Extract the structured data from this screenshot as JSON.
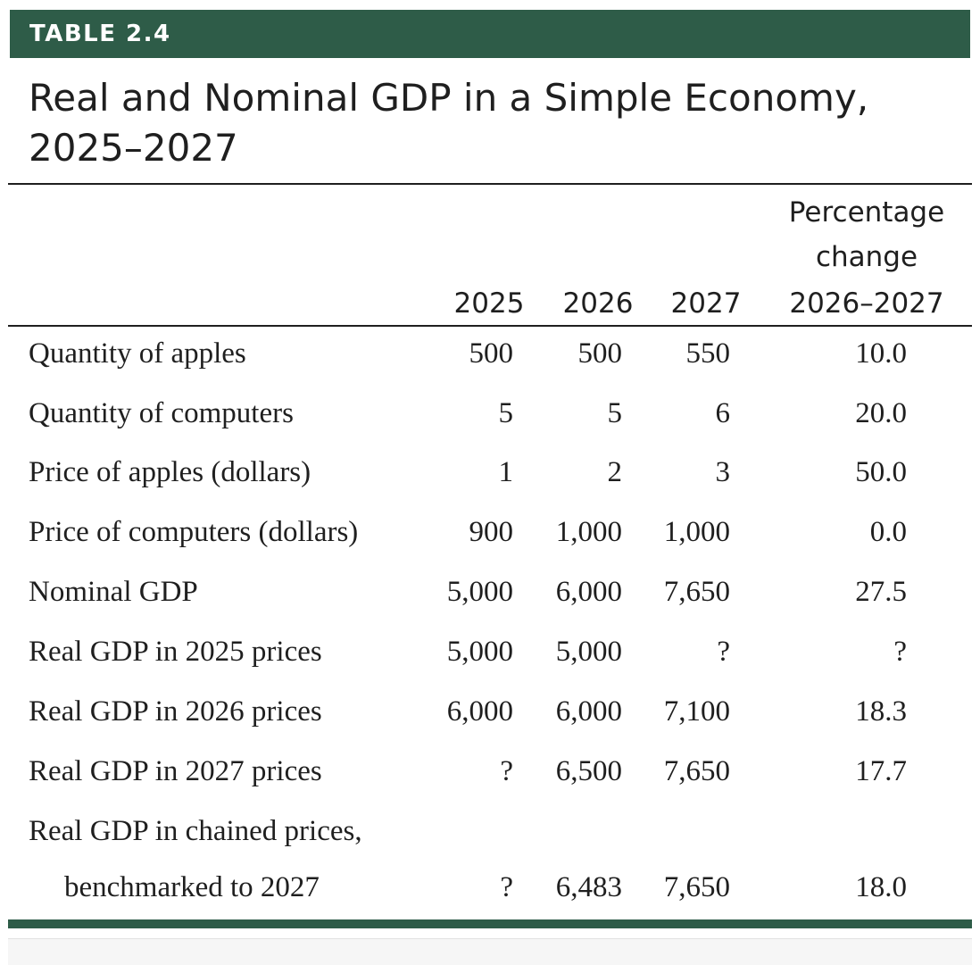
{
  "header": {
    "label": "TABLE 2.4",
    "title": "Real and Nominal GDP in a Simple Economy, 2025–2027"
  },
  "columns": {
    "y2025": "2025",
    "y2026": "2026",
    "y2027": "2027",
    "pct_line1": "Percentage",
    "pct_line2": "change",
    "pct_line3": "2026–2027"
  },
  "rows": [
    {
      "label": "Quantity of apples",
      "v2025": "500",
      "v2026": "500",
      "v2027": "550",
      "pct": "10.0"
    },
    {
      "label": "Quantity of computers",
      "v2025": "5",
      "v2026": "5",
      "v2027": "6",
      "pct": "20.0"
    },
    {
      "label": "Price of apples (dollars)",
      "v2025": "1",
      "v2026": "2",
      "v2027": "3",
      "pct": "50.0"
    },
    {
      "label": "Price of computers (dollars)",
      "v2025": "900",
      "v2026": "1,000",
      "v2027": "1,000",
      "pct": "0.0"
    },
    {
      "label": "Nominal GDP",
      "v2025": "5,000",
      "v2026": "6,000",
      "v2027": "7,650",
      "pct": "27.5"
    },
    {
      "label": "Real GDP in 2025 prices",
      "v2025": "5,000",
      "v2026": "5,000",
      "v2027": "?",
      "pct": "?"
    },
    {
      "label": "Real GDP in 2026 prices",
      "v2025": "6,000",
      "v2026": "6,000",
      "v2027": "7,100",
      "pct": "18.3"
    },
    {
      "label": "Real GDP in 2027 prices",
      "v2025": "?",
      "v2026": "6,500",
      "v2027": "7,650",
      "pct": "17.7"
    },
    {
      "label": "Real GDP in chained prices,",
      "v2025": "",
      "v2026": "",
      "v2027": "",
      "pct": ""
    },
    {
      "label": "benchmarked to 2027",
      "v2025": "?",
      "v2026": "6,483",
      "v2027": "7,650",
      "pct": "18.0"
    }
  ],
  "colors": {
    "banner": "#2e5c48",
    "text": "#1f1f1f"
  }
}
